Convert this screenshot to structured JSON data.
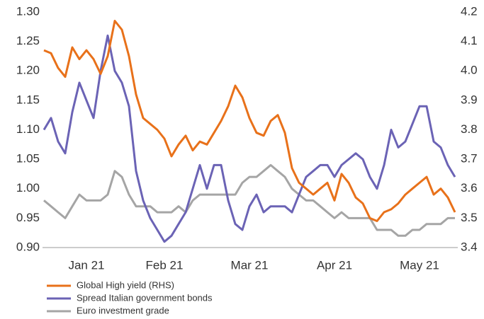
{
  "chart_data": {
    "type": "line",
    "categories": [
      null,
      null,
      null,
      null,
      null,
      null,
      "Jan 21",
      null,
      null,
      null,
      null,
      null,
      null,
      null,
      null,
      null,
      null,
      "Feb 21",
      null,
      null,
      null,
      null,
      null,
      null,
      null,
      null,
      null,
      null,
      null,
      "Mar 21",
      null,
      null,
      null,
      null,
      null,
      null,
      null,
      null,
      null,
      null,
      null,
      "Apr 21",
      null,
      null,
      null,
      null,
      null,
      null,
      null,
      null,
      null,
      null,
      null,
      "May 21",
      null,
      null,
      null,
      null,
      null
    ],
    "series": [
      {
        "name": "Global High yield (RHS)",
        "color": "#e8711a",
        "axis": "y2",
        "values": [
          4.07,
          4.06,
          4.01,
          3.98,
          4.08,
          4.04,
          4.07,
          4.04,
          3.99,
          4.05,
          4.17,
          4.14,
          4.05,
          3.92,
          3.84,
          3.82,
          3.8,
          3.77,
          3.71,
          3.75,
          3.78,
          3.73,
          3.76,
          3.75,
          3.79,
          3.83,
          3.88,
          3.95,
          3.91,
          3.84,
          3.79,
          3.78,
          3.83,
          3.85,
          3.79,
          3.67,
          3.62,
          3.6,
          3.58,
          3.6,
          3.62,
          3.56,
          3.65,
          3.62,
          3.57,
          3.55,
          3.5,
          3.49,
          3.52,
          3.53,
          3.55,
          3.58,
          3.6,
          3.62,
          3.64,
          3.58,
          3.6,
          3.57,
          3.52
        ]
      },
      {
        "name": "Spread Italian government bonds",
        "color": "#6b63b5",
        "values": [
          1.1,
          1.12,
          1.08,
          1.06,
          1.13,
          1.18,
          1.15,
          1.12,
          1.2,
          1.26,
          1.2,
          1.18,
          1.14,
          1.03,
          0.98,
          0.95,
          0.93,
          0.91,
          0.92,
          0.94,
          0.96,
          1.0,
          1.04,
          1.0,
          1.04,
          1.04,
          0.98,
          0.94,
          0.93,
          0.97,
          0.99,
          0.96,
          0.97,
          0.97,
          0.97,
          0.96,
          0.99,
          1.02,
          1.03,
          1.04,
          1.04,
          1.02,
          1.04,
          1.05,
          1.06,
          1.05,
          1.02,
          1.0,
          1.04,
          1.1,
          1.07,
          1.08,
          1.11,
          1.14,
          1.14,
          1.08,
          1.07,
          1.04,
          1.02
        ]
      },
      {
        "name": "Euro investment grade",
        "color": "#a5a5a5",
        "values": [
          0.98,
          0.97,
          0.96,
          0.95,
          0.97,
          0.99,
          0.98,
          0.98,
          0.98,
          0.99,
          1.03,
          1.02,
          0.99,
          0.97,
          0.97,
          0.97,
          0.96,
          0.96,
          0.96,
          0.97,
          0.96,
          0.98,
          0.99,
          0.99,
          0.99,
          0.99,
          0.99,
          0.99,
          1.01,
          1.02,
          1.02,
          1.03,
          1.04,
          1.03,
          1.02,
          1.0,
          0.99,
          0.98,
          0.98,
          0.97,
          0.96,
          0.95,
          0.96,
          0.95,
          0.95,
          0.95,
          0.95,
          0.93,
          0.93,
          0.93,
          0.92,
          0.92,
          0.93,
          0.93,
          0.94,
          0.94,
          0.94,
          0.95,
          0.95
        ]
      }
    ],
    "ylim": [
      0.9,
      1.3
    ],
    "yticks": [
      {
        "value": 0.9,
        "label": "0.90"
      },
      0.95,
      {
        "value": 1,
        "label": "1.00"
      },
      1.05,
      {
        "value": 1.1,
        "label": "1.10"
      },
      1.15,
      {
        "value": 1.2,
        "label": "1.20"
      },
      1.25,
      {
        "value": 1.3,
        "label": "1.30"
      }
    ],
    "y2lim": [
      3.4,
      4.2
    ],
    "y2ticks": [
      3.4,
      3.5,
      3.6,
      3.7,
      3.8,
      3.9,
      {
        "value": 4,
        "label": "4.0"
      },
      4.1,
      4.2
    ],
    "grid": false,
    "legend": "bottom"
  }
}
